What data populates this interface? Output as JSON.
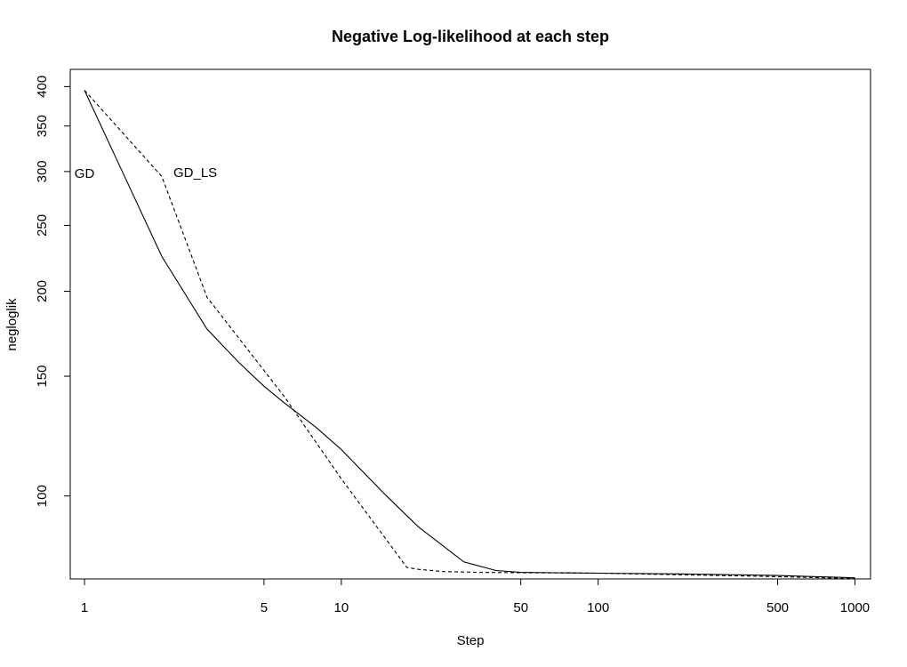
{
  "chart_data": {
    "type": "line",
    "title": "Negative Log-likelihood at each step",
    "xlabel": "Step",
    "ylabel": "negloglik",
    "x_scale": "log",
    "y_scale": "log",
    "xlim": [
      0.88,
      1150
    ],
    "ylim": [
      75.5,
      424
    ],
    "x_ticks": [
      1,
      5,
      10,
      50,
      100,
      500,
      1000
    ],
    "y_ticks": [
      100,
      150,
      200,
      250,
      300,
      350,
      400
    ],
    "grid": false,
    "legend": "none",
    "annotations": [
      {
        "text": "GD",
        "x": 1,
        "y": 297
      },
      {
        "text": "GD_LS",
        "x": 2.7,
        "y": 298
      }
    ],
    "series": [
      {
        "line_style": "solid",
        "x": [
          1,
          2,
          3,
          4,
          5,
          6,
          8,
          10,
          15,
          20,
          30,
          40,
          50,
          100,
          200,
          500,
          1000
        ],
        "y": [
          395,
          225,
          176,
          157,
          145,
          137,
          126,
          117,
          100,
          90,
          80,
          77.7,
          77.2,
          77.0,
          76.8,
          76.4,
          75.8
        ]
      },
      {
        "line_style": "dashed",
        "x": [
          1,
          2,
          3,
          6,
          10,
          18,
          20,
          25,
          35,
          50,
          100,
          500,
          1000
        ],
        "y": [
          395,
          295,
          196,
          140,
          106,
          78.5,
          78.0,
          77.4,
          77.2,
          77.1,
          77.0,
          76.1,
          75.6
        ]
      }
    ]
  }
}
